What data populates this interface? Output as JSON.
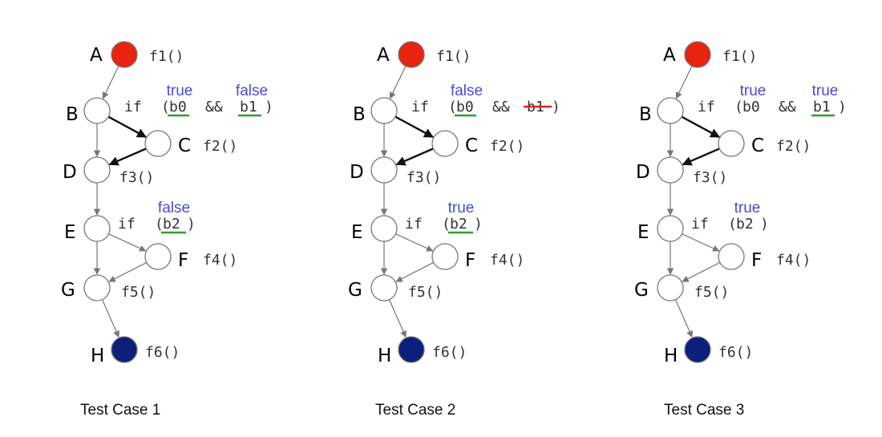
{
  "colors": {
    "annotation": "#4a4ad8",
    "underline": "#2ca02c",
    "strike": "#e0201b",
    "start_node": "#e8230f",
    "end_node": "#0c1f7a",
    "empty_node": "#ffffff"
  },
  "cases": [
    {
      "caption": "Test Case 1",
      "nodes": {
        "A": "A",
        "B": "B",
        "C": "C",
        "D": "D",
        "E": "E",
        "F": "F",
        "G": "G",
        "H": "H"
      },
      "funcs": {
        "f1": "f1()",
        "f2": "f2()",
        "f3": "f3()",
        "f4": "f4()",
        "f5": "f5()",
        "f6": "f6()"
      },
      "cond1": {
        "kw": "if",
        "open": "(",
        "v1": "b0",
        "op": "&&",
        "v2": "b1",
        "close": ")"
      },
      "cond2": {
        "kw": "if",
        "open": "(",
        "v1": "b2",
        "close": ")"
      },
      "ann_b0": "true",
      "ann_b1": "false",
      "ann_b2": "false",
      "underline_b0": true,
      "underline_b1": true,
      "underline_b2": true,
      "strike_b1": false,
      "bold_edges": [
        "B-C",
        "C-D"
      ]
    },
    {
      "caption": "Test Case 2",
      "nodes": {
        "A": "A",
        "B": "B",
        "C": "C",
        "D": "D",
        "E": "E",
        "F": "F",
        "G": "G",
        "H": "H"
      },
      "funcs": {
        "f1": "f1()",
        "f2": "f2()",
        "f3": "f3()",
        "f4": "f4()",
        "f5": "f5()",
        "f6": "f6()"
      },
      "cond1": {
        "kw": "if",
        "open": "(",
        "v1": "b0",
        "op": "&&",
        "v2": "b1",
        "close": ")"
      },
      "cond2": {
        "kw": "if",
        "open": "(",
        "v1": "b2",
        "close": ")"
      },
      "ann_b0": "false",
      "ann_b1": "",
      "ann_b2": "true",
      "underline_b0": true,
      "underline_b1": false,
      "underline_b2": true,
      "strike_b1": true,
      "bold_edges": [
        "B-C",
        "C-D"
      ]
    },
    {
      "caption": "Test Case 3",
      "nodes": {
        "A": "A",
        "B": "B",
        "C": "C",
        "D": "D",
        "E": "E",
        "F": "F",
        "G": "G",
        "H": "H"
      },
      "funcs": {
        "f1": "f1()",
        "f2": "f2()",
        "f3": "f3()",
        "f4": "f4()",
        "f5": "f5()",
        "f6": "f6()"
      },
      "cond1": {
        "kw": "if",
        "open": "(",
        "v1": "b0",
        "op": "&&",
        "v2": "b1",
        "close": ")"
      },
      "cond2": {
        "kw": "if",
        "open": "(",
        "v1": "b2",
        "close": ")"
      },
      "ann_b0": "true",
      "ann_b1": "true",
      "ann_b2": "true",
      "underline_b0": false,
      "underline_b1": true,
      "underline_b2": false,
      "strike_b1": false,
      "bold_edges": [
        "B-C",
        "C-D"
      ]
    }
  ]
}
